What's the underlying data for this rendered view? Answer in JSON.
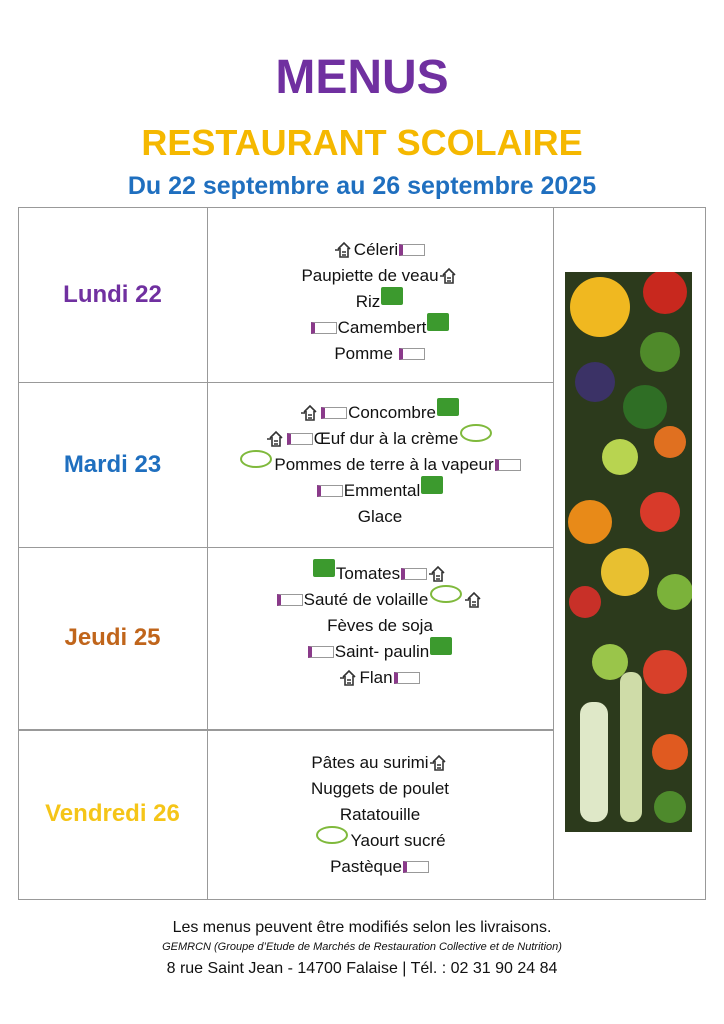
{
  "header": {
    "title": "MENUS",
    "subtitle": "RESTAURANT SCOLAIRE",
    "dates": "Du 22 septembre au 26 septembre 2025"
  },
  "days": [
    {
      "label": "Lundi 22",
      "items": [
        "Céleri",
        "Paupiette de veau",
        "Riz",
        "Camembert",
        "Pomme "
      ]
    },
    {
      "label": "Mardi 23",
      "items": [
        "Concombre",
        "Œuf dur à la crème",
        " Pommes de terre à la vapeur",
        "Emmental",
        "Glace"
      ]
    },
    {
      "label": "Jeudi 25",
      "items": [
        "Tomates",
        "Sauté de volaille ",
        "Fèves de soja",
        "Saint- paulin",
        "Flan "
      ]
    },
    {
      "label": "Vendredi 26",
      "items": [
        "Pâtes au surimi",
        "Nuggets de poulet",
        "Ratatouille",
        " Yaourt sucré",
        "Pastèque"
      ]
    }
  ],
  "footer": {
    "notice": "Les menus peuvent être modifiés selon les livraisons.",
    "gemrcn": "GEMRCN (Groupe d’Etude de Marchés de Restauration Collective et de Nutrition)",
    "address": "8 rue Saint Jean - 14700 Falaise | Tél. : 02 31 90 24 84"
  }
}
